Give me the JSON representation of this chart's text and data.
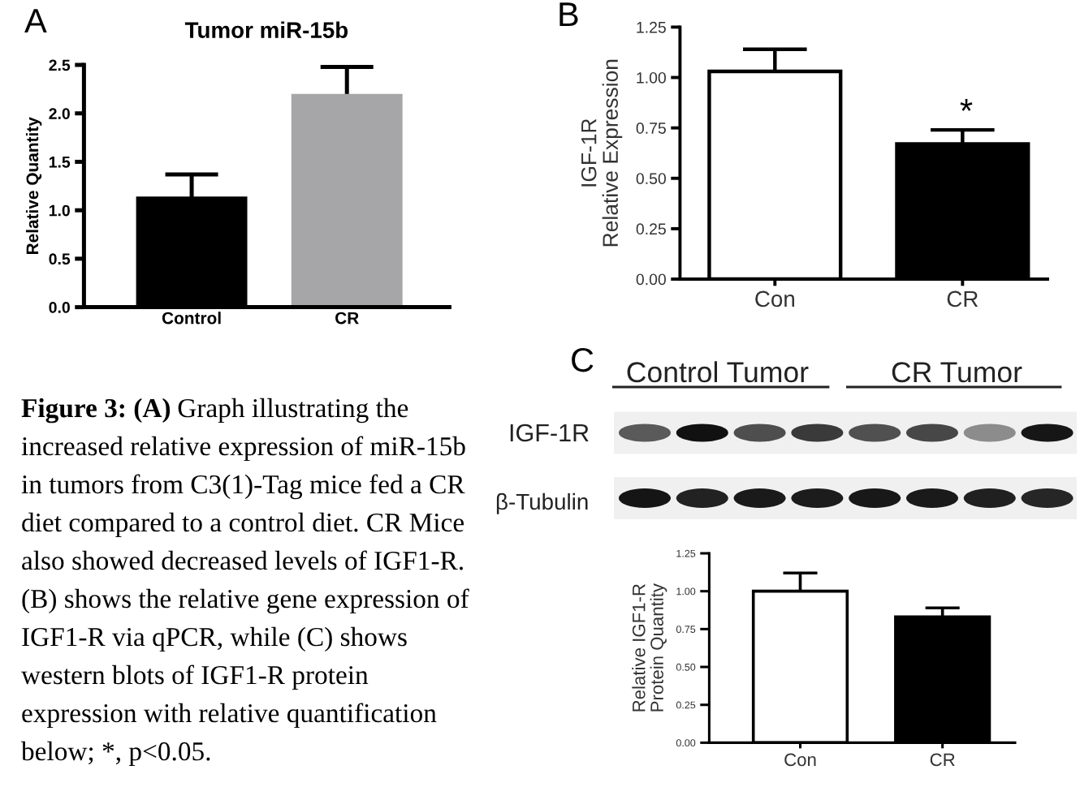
{
  "chart_data": [
    {
      "type": "bar",
      "title": "Tumor miR-15b",
      "ylabel": "Relative Quantity",
      "categories": [
        "Control",
        "CR"
      ],
      "values": [
        1.12,
        2.18
      ],
      "colors": [
        "#000000",
        "#a6a6a8"
      ],
      "errors": [
        [
          1.12,
          1.37
        ],
        [
          2.18,
          2.48
        ]
      ],
      "ylim": [
        0,
        2.5
      ],
      "yticks": [
        {
          "value": 0,
          "label": "0.0"
        },
        {
          "value": 0.5,
          "label": "0.5"
        },
        {
          "value": 1,
          "label": "1.0"
        },
        {
          "value": 1.5,
          "label": "1.5"
        },
        {
          "value": 2,
          "label": "2.0"
        },
        {
          "value": 2.5,
          "label": "2.5"
        }
      ],
      "annotations": [
        "A",
        "Figure 3: (A) Graph illustrating the increased relative expression of miR-15b in tumors from C3(1)-Tag mice fed a CR diet compared to a control diet. CR Mice also showed decreased levels of IGF1-R. (B) shows the relative gene expression of IGF1-R via qPCR, while (C) shows western blots of IGF1-R protein expression with relative quantification below; *, p<0.05."
      ]
    },
    {
      "type": "bar",
      "ylabel": "IGF-1R\nRelative Expression",
      "categories": [
        "Con",
        "CR"
      ],
      "values": [
        1.03,
        0.67
      ],
      "colors": [
        "#ffffff",
        "#000000"
      ],
      "errors": [
        [
          1.03,
          1.14
        ],
        [
          0.67,
          0.74
        ]
      ],
      "ylim": [
        0,
        1.25
      ],
      "yticks": [
        {
          "value": 0,
          "label": "0.00"
        },
        {
          "value": 0.25,
          "label": "0.25"
        },
        {
          "value": 0.5,
          "label": "0.50"
        },
        {
          "value": 0.75,
          "label": "0.75"
        },
        {
          "value": 1,
          "label": "1.00"
        },
        {
          "value": 1.25,
          "label": "1.25"
        }
      ],
      "annotations": [
        "B",
        "*"
      ]
    },
    {
      "type": "bar",
      "ylabel": "Relative IGF1-R\nProtein Quantity",
      "categories": [
        "Con",
        "CR"
      ],
      "values": [
        1.0,
        0.83
      ],
      "colors": [
        "#ffffff",
        "#000000"
      ],
      "errors": [
        [
          1.0,
          1.12
        ],
        [
          0.83,
          0.89
        ]
      ],
      "ylim": [
        0,
        1.25
      ],
      "yticks": [
        {
          "value": 0,
          "label": "0.00"
        },
        {
          "value": 0.25,
          "label": "0.25"
        },
        {
          "value": 0.5,
          "label": "0.50"
        },
        {
          "value": 0.75,
          "label": "0.75"
        },
        {
          "value": 1,
          "label": "1.00"
        },
        {
          "value": 1.25,
          "label": "1.25"
        }
      ],
      "annotations": [
        "C",
        "Control Tumor",
        "CR Tumor",
        "IGF-1R",
        "β-Tubulin"
      ]
    }
  ]
}
